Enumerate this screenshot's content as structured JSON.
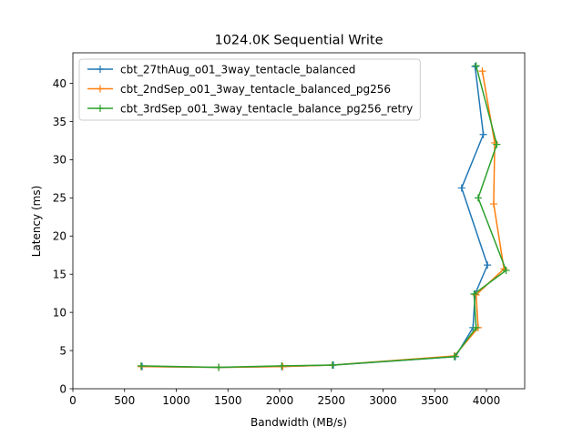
{
  "chart_data": {
    "type": "line",
    "title": "1024.0K  Sequential Write",
    "xlabel": "Bandwidth (MB/s)",
    "ylabel": "Latency (ms)",
    "xlim": [
      0,
      4370
    ],
    "ylim": [
      0,
      44
    ],
    "xticks": [
      0,
      500,
      1000,
      1500,
      2000,
      2500,
      3000,
      3500,
      4000
    ],
    "yticks": [
      0,
      5,
      10,
      15,
      20,
      25,
      30,
      35,
      40
    ],
    "grid": false,
    "legend_position": "upper left",
    "marker": "+",
    "series": [
      {
        "name": "cbt_27thAug_o01_3way_tentacle_balanced",
        "color": "#1f77b4",
        "points": [
          [
            670,
            2.9
          ],
          [
            1410,
            2.8
          ],
          [
            2020,
            2.9
          ],
          [
            2520,
            3.1
          ],
          [
            3700,
            4.2
          ],
          [
            3870,
            8.0
          ],
          [
            3890,
            12.4
          ],
          [
            4010,
            16.2
          ],
          [
            3760,
            26.3
          ],
          [
            3970,
            33.3
          ],
          [
            3890,
            42.2
          ]
        ]
      },
      {
        "name": "cbt_2ndSep_o01_3way_tentacle_balanced_pg256",
        "color": "#ff7f0e",
        "points": [
          [
            660,
            2.9
          ],
          [
            1410,
            2.8
          ],
          [
            2030,
            2.9
          ],
          [
            2510,
            3.1
          ],
          [
            3690,
            4.3
          ],
          [
            3920,
            8.0
          ],
          [
            3900,
            12.3
          ],
          [
            4170,
            15.7
          ],
          [
            4070,
            24.2
          ],
          [
            4080,
            32.2
          ],
          [
            3960,
            41.6
          ]
        ]
      },
      {
        "name": "cbt_3rdSep_o01_3way_tentacle_balance_pg256_retry",
        "color": "#2ca02c",
        "points": [
          [
            660,
            3.0
          ],
          [
            1410,
            2.8
          ],
          [
            2020,
            3.0
          ],
          [
            2510,
            3.1
          ],
          [
            3690,
            4.2
          ],
          [
            3900,
            8.0
          ],
          [
            3880,
            12.4
          ],
          [
            4190,
            15.5
          ],
          [
            3920,
            25.0
          ],
          [
            4100,
            32.0
          ],
          [
            3900,
            42.3
          ]
        ]
      }
    ]
  }
}
